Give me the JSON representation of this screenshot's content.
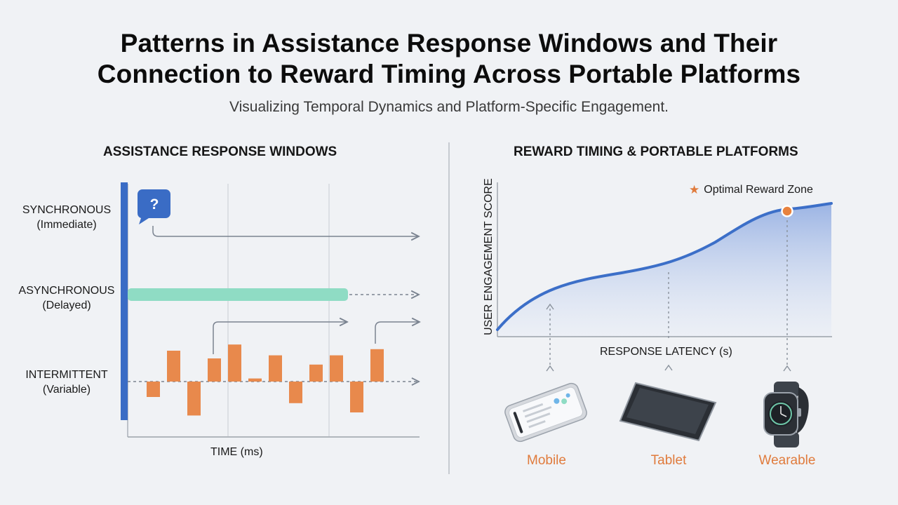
{
  "header": {
    "title_line1": "Patterns in Assistance Response Windows and Their",
    "title_line2": "Connection to Reward Timing Across Portable Platforms",
    "subtitle": "Visualizing Temporal Dynamics and Platform-Specific Engagement."
  },
  "left_panel": {
    "title": "ASSISTANCE RESPONSE WINDOWS",
    "rows": [
      {
        "name": "SYNCHRONOUS",
        "qualifier": "(Immediate)"
      },
      {
        "name": "ASYNCHRONOUS",
        "qualifier": "(Delayed)"
      },
      {
        "name": "INTERMITTENT",
        "qualifier": "(Variable)"
      }
    ],
    "x_axis_label": "TIME (ms)",
    "help_icon_glyph": "?",
    "intermittent_values": [
      -1.0,
      2.0,
      -2.2,
      1.5,
      2.4,
      0.2,
      1.7,
      -1.4,
      1.1,
      1.7,
      -2.0,
      2.1
    ],
    "colors": {
      "bar": "#e8894c",
      "async_bar": "#8fdcc4",
      "axis": "#3a6cc5"
    }
  },
  "right_panel": {
    "title": "REWARD TIMING & PORTABLE PLATFORMS",
    "y_axis_label": "USER ENGAGEMENT SCORE",
    "x_axis_label": "RESPONSE LATENCY (s)",
    "legend": {
      "marker": "★",
      "label": "Optimal Reward Zone"
    },
    "devices": [
      {
        "label": "Mobile",
        "icon": "smartphone-icon"
      },
      {
        "label": "Tablet",
        "icon": "tablet-icon"
      },
      {
        "label": "Wearable",
        "icon": "smartwatch-icon"
      }
    ],
    "colors": {
      "curve": "#3c6fc8",
      "accent": "#e07b3c"
    }
  }
}
